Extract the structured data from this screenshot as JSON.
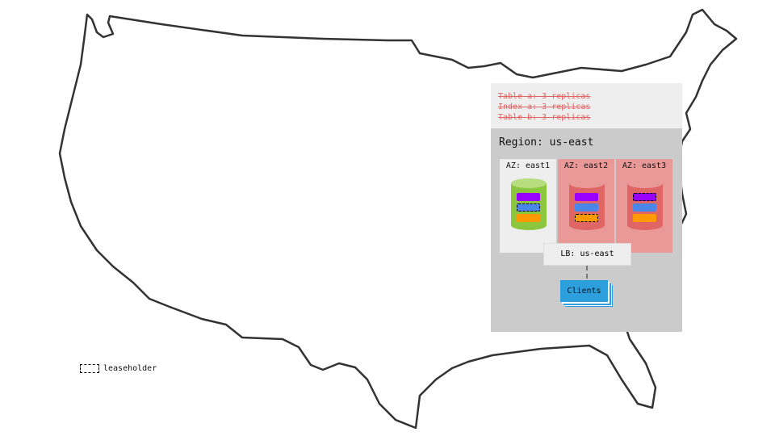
{
  "tables": [
    "Table a: 3 replicas",
    "Index a: 3 replicas",
    "Table b: 3 replicas"
  ],
  "region": "Region: us-east",
  "azs": [
    {
      "label": "AZ: east1",
      "bg": "#eeeeee",
      "cylinder": "#8cc63f",
      "leaseholder": "blue"
    },
    {
      "label": "AZ: east2",
      "bg": "#ea9999",
      "cylinder": "#e06666",
      "leaseholder": "orange"
    },
    {
      "label": "AZ: east3",
      "bg": "#ea9999",
      "cylinder": "#e06666",
      "leaseholder": "purple"
    }
  ],
  "lb": "LB: us-east",
  "clients": "Clients",
  "legend": "leaseholder",
  "colors": {
    "purple": "#9900ff",
    "blue": "#4a86e8",
    "orange": "#ff9900"
  }
}
